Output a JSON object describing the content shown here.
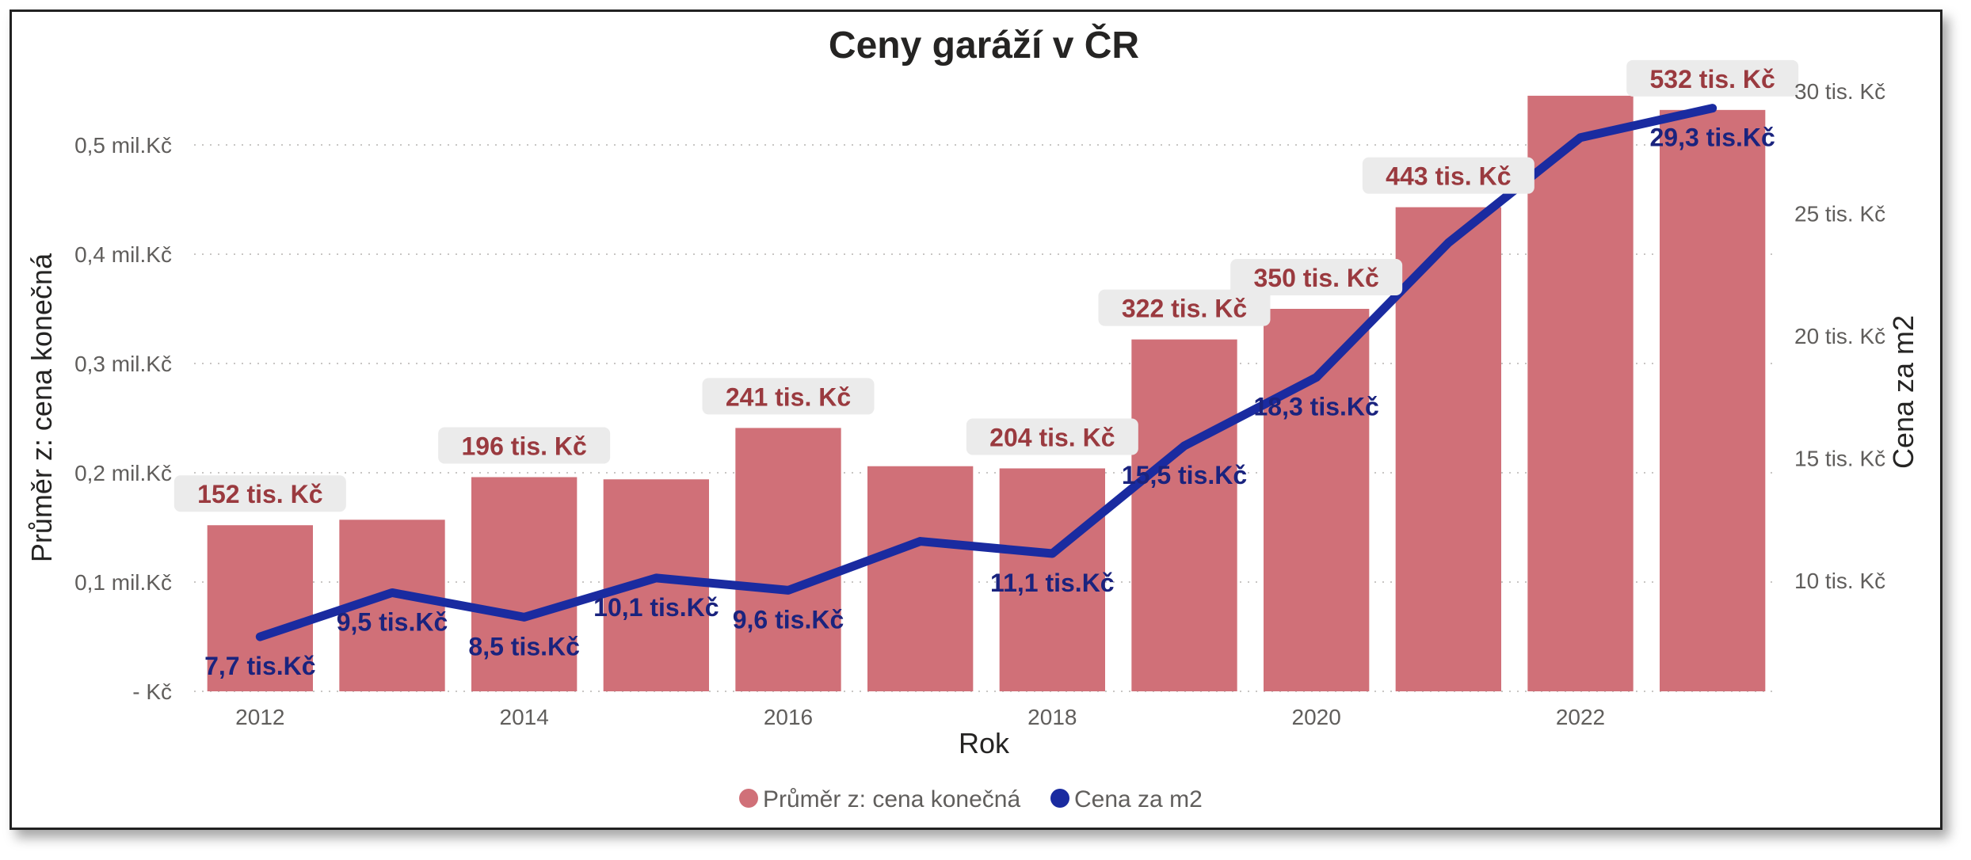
{
  "chart_data": {
    "type": "bar",
    "title": "Ceny garáží v ČR",
    "xlabel": "Rok",
    "ylabel": "Průměr z: cena konečná",
    "y2label": "Cena za m2",
    "categories": [
      "2012",
      "2013",
      "2014",
      "2015",
      "2016",
      "2017",
      "2018",
      "2019",
      "2020",
      "2021",
      "2022",
      "2023"
    ],
    "x_tick_labels": [
      "2012",
      "2014",
      "2016",
      "2018",
      "2020",
      "2022"
    ],
    "y_ticks": [
      {
        "value": 0,
        "label": "- Kč"
      },
      {
        "value": 100000,
        "label": "0,1 mil.Kč"
      },
      {
        "value": 200000,
        "label": "0,2 mil.Kč"
      },
      {
        "value": 300000,
        "label": "0,3 mil.Kč"
      },
      {
        "value": 400000,
        "label": "0,4 mil.Kč"
      },
      {
        "value": 500000,
        "label": "0,5 mil.Kč"
      }
    ],
    "y2_ticks": [
      {
        "value": 10000,
        "label": "10 tis. Kč"
      },
      {
        "value": 15000,
        "label": "15 tis. Kč"
      },
      {
        "value": 20000,
        "label": "20 tis. Kč"
      },
      {
        "value": 25000,
        "label": "25 tis. Kč"
      },
      {
        "value": 30000,
        "label": "30 tis. Kč"
      }
    ],
    "ylim": [
      0,
      500000
    ],
    "y2lim": [
      10000,
      30000
    ],
    "grid": true,
    "legend_position": "bottom-center",
    "series": [
      {
        "name": "Průměr z: cena konečná",
        "type": "bar",
        "axis": "left",
        "color": "#D07078",
        "values": [
          152000,
          157000,
          196000,
          194000,
          241000,
          206000,
          204000,
          322000,
          350000,
          443000,
          545000,
          532000
        ],
        "labels": [
          "152 tis. Kč",
          "",
          "196 tis. Kč",
          "",
          "241 tis. Kč",
          "",
          "204 tis. Kč",
          "322 tis. Kč",
          "350 tis. Kč",
          "443 tis. Kč",
          "",
          "532 tis. Kč"
        ]
      },
      {
        "name": "Cena za m2",
        "type": "line",
        "axis": "right",
        "color": "#1A2BA0",
        "values": [
          7700,
          9500,
          8500,
          10100,
          9600,
          11600,
          11100,
          15500,
          18300,
          23800,
          28100,
          29300
        ],
        "labels": [
          "7,7 tis.Kč",
          "9,5 tis.Kč",
          "8,5 tis.Kč",
          "10,1 tis.Kč",
          "9,6 tis.Kč",
          "",
          "11,1 tis.Kč",
          "15,5 tis.Kč",
          "18,3 tis.Kč",
          "",
          "",
          "29,3 tis.Kč"
        ]
      }
    ]
  }
}
